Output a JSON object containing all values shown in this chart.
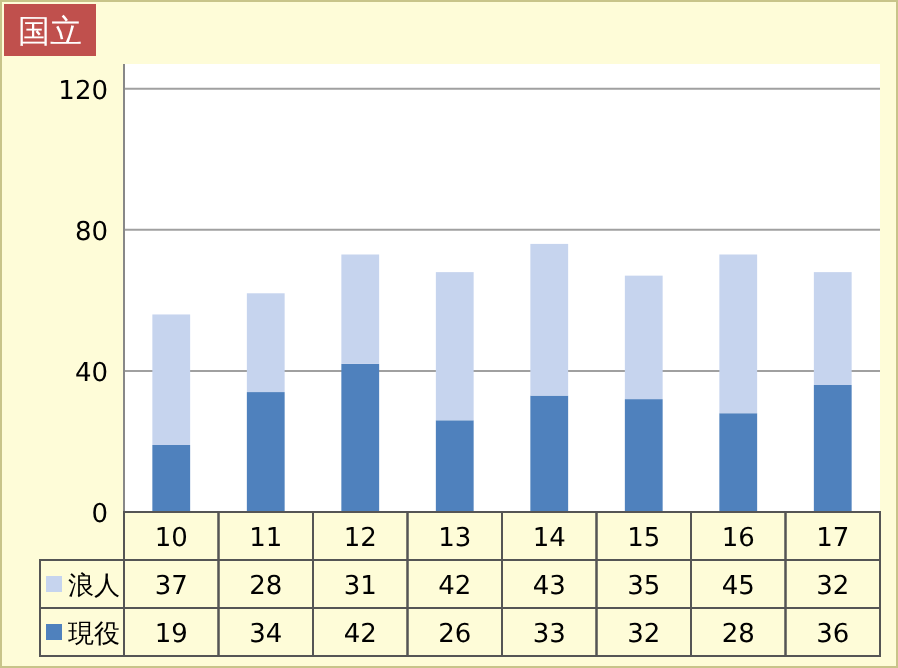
{
  "chart_data": {
    "type": "bar",
    "title": "国立",
    "categories": [
      "10",
      "11",
      "12",
      "13",
      "14",
      "15",
      "16",
      "17"
    ],
    "stacked": true,
    "series": [
      {
        "name": "現役",
        "color": "#4f81bd",
        "values": [
          19,
          34,
          42,
          26,
          33,
          32,
          28,
          36
        ]
      },
      {
        "name": "浪人",
        "color": "#c6d4ee",
        "values": [
          37,
          28,
          31,
          42,
          43,
          35,
          45,
          32
        ]
      }
    ],
    "ylim": [
      0,
      127
    ],
    "yticks": [
      0,
      40,
      80,
      120
    ],
    "grid": "y",
    "data_labels": true,
    "legend": "bottom left"
  }
}
